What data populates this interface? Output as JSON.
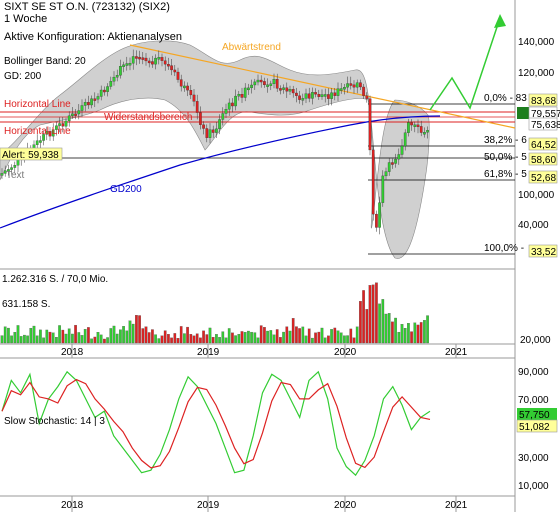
{
  "header": {
    "title": "SIXT SE ST O.N. (723132) (SIX2)",
    "interval": "1 Woche",
    "config": "Aktive Konfiguration: Aktienanalysen",
    "bollinger": "Bollinger Band: 20",
    "gd": "GD: 200"
  },
  "annotations": {
    "downtrend": "Abwärtstrend",
    "resistance_zone": "Widerstandsbereich",
    "hline1": "Horizontal Line",
    "hline2": "Horizontal Line",
    "alert": "Alert: 59,938",
    "text": "Text",
    "gd200": "GD200"
  },
  "price_axis": [
    "140,000",
    "120,000",
    "100,000",
    "40,000"
  ],
  "fib_levels": [
    {
      "label": "0,0% - 83",
      "value": "83,68"
    },
    {
      "label": "38,2% - 6",
      "value": "64,52"
    },
    {
      "label": "50,0% - 5",
      "value": "58,60"
    },
    {
      "label": "61,8% - 5",
      "value": "52,68"
    },
    {
      "label": "100,0% -",
      "value": "33,52"
    }
  ],
  "price_tags": [
    "79,557",
    "75,638"
  ],
  "volume": {
    "top_label": "1.262.316 S. / 70,0 Mio.",
    "mid_label": "631.158 S.",
    "axis": "20,000"
  },
  "x_axis": [
    "2018",
    "2019",
    "2020",
    "2021"
  ],
  "stochastic": {
    "label": "Slow Stochastic: 14 | 3",
    "axis": [
      "90,000",
      "70,000",
      "50,000",
      "30,000",
      "10,000"
    ],
    "value1": "57,750",
    "value2": "51,082"
  },
  "colors": {
    "fib_tag": "#ffff99",
    "green": "#33cc33",
    "red": "#dd2222",
    "orange": "#f5a623",
    "blue": "#0000cc"
  }
}
